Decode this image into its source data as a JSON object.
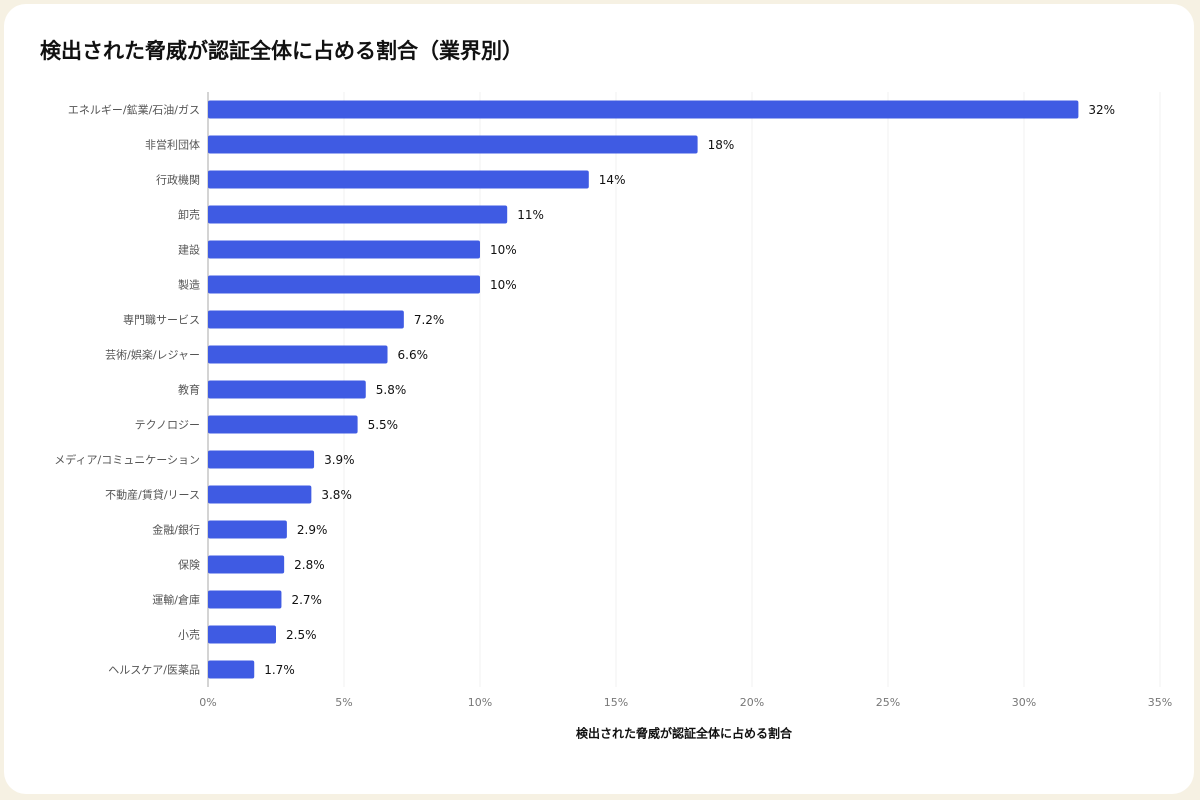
{
  "chart_data": {
    "type": "bar",
    "orientation": "horizontal",
    "title": "検出された脅威が認証全体に占める割合（業界別）",
    "x_label": "検出された脅威が認証全体に占める割合",
    "categories": [
      "エネルギー/鉱業/石油/ガス",
      "非営利団体",
      "行政機関",
      "卸売",
      "建設",
      "製造",
      "専門職サービス",
      "芸術/娯楽/レジャー",
      "教育",
      "テクノロジー",
      "メディア/コミュニケーション",
      "不動産/賃貸/リース",
      "金融/銀行",
      "保険",
      "運輸/倉庫",
      "小売",
      "ヘルスケア/医薬品"
    ],
    "values": [
      32,
      18,
      14,
      11,
      10,
      10,
      7.2,
      6.6,
      5.8,
      5.5,
      3.9,
      3.8,
      2.9,
      2.8,
      2.7,
      2.5,
      1.7
    ],
    "value_labels": [
      "32%",
      "18%",
      "14%",
      "11%",
      "10%",
      "10%",
      "7.2%",
      "6.6%",
      "5.8%",
      "5.5%",
      "3.9%",
      "3.8%",
      "2.9%",
      "2.8%",
      "2.7%",
      "2.5%",
      "1.7%"
    ],
    "color": "#3f5be3",
    "xlim": [
      0,
      35
    ],
    "xticks": [
      {
        "value": 0,
        "label": "0%"
      },
      {
        "value": 5,
        "label": "5%"
      },
      {
        "value": 10,
        "label": "10%"
      },
      {
        "value": 15,
        "label": "15%"
      },
      {
        "value": 20,
        "label": "20%"
      },
      {
        "value": 25,
        "label": "25%"
      },
      {
        "value": 30,
        "label": "30%"
      },
      {
        "value": 35,
        "label": "35%"
      }
    ],
    "grid": true
  }
}
